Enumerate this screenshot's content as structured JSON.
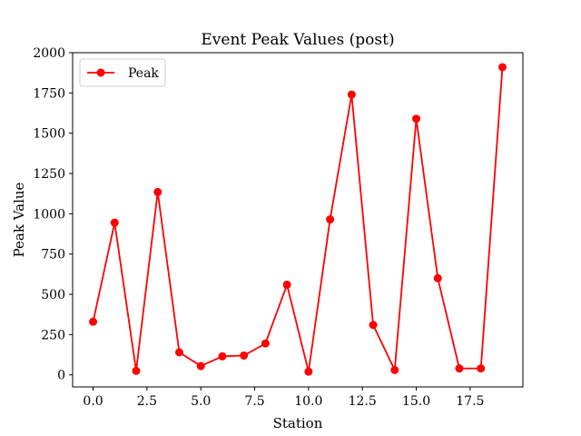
{
  "chart_data": {
    "type": "line",
    "title": "Event Peak Values (post)",
    "xlabel": "Station",
    "ylabel": "Peak Value",
    "xlim": [
      -0.95,
      19.95
    ],
    "ylim": [
      -75,
      2000
    ],
    "xticks": [
      0.0,
      2.5,
      5.0,
      7.5,
      10.0,
      12.5,
      15.0,
      17.5
    ],
    "xtick_labels": [
      "0.0",
      "2.5",
      "5.0",
      "7.5",
      "10.0",
      "12.5",
      "15.0",
      "17.5"
    ],
    "yticks": [
      0,
      250,
      500,
      750,
      1000,
      1250,
      1500,
      1750,
      2000
    ],
    "ytick_labels": [
      "0",
      "250",
      "500",
      "750",
      "1000",
      "1250",
      "1500",
      "1750",
      "2000"
    ],
    "grid": false,
    "legend_position": "top-left",
    "series": [
      {
        "name": "Peak",
        "color": "#ff0000",
        "marker": "circle",
        "x": [
          0,
          1,
          2,
          3,
          4,
          5,
          6,
          7,
          8,
          9,
          10,
          11,
          12,
          13,
          14,
          15,
          16,
          17,
          18,
          19
        ],
        "y": [
          330,
          945,
          25,
          1135,
          140,
          55,
          115,
          120,
          195,
          560,
          20,
          965,
          1740,
          310,
          30,
          1590,
          600,
          40,
          40,
          1910
        ]
      }
    ]
  }
}
